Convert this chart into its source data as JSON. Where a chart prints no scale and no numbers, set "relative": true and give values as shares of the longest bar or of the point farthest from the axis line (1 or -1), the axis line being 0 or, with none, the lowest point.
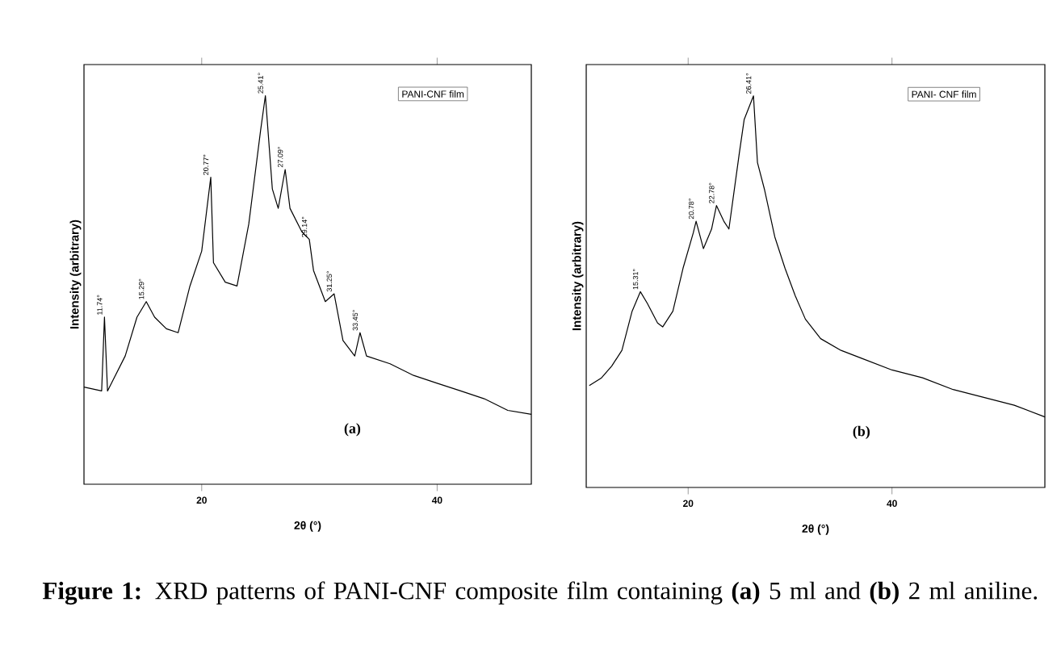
{
  "chart_data": [
    {
      "type": "line",
      "relative": true,
      "xlabel": "2θ (°)",
      "ylabel": "Intensity (arbitrary)",
      "xlim": [
        10,
        48
      ],
      "xticks": [
        20,
        40
      ],
      "tick_labels": "x",
      "grid": false,
      "series": [
        {
          "color": "#000000",
          "x": [
            10,
            11.5,
            11.74,
            12,
            12.5,
            13.5,
            14.5,
            15.29,
            16,
            17,
            18,
            19,
            20,
            20.77,
            21,
            22,
            23,
            24,
            25,
            25.41,
            26,
            26.5,
            27.09,
            27.5,
            28.5,
            29.14,
            29.5,
            30.5,
            31.25,
            32,
            33,
            33.45,
            34,
            36,
            38,
            40,
            42,
            44,
            46,
            48
          ],
          "values": [
            0.25,
            0.24,
            0.43,
            0.24,
            0.27,
            0.33,
            0.43,
            0.47,
            0.43,
            0.4,
            0.39,
            0.51,
            0.6,
            0.79,
            0.57,
            0.52,
            0.51,
            0.67,
            0.91,
            1.0,
            0.76,
            0.71,
            0.81,
            0.71,
            0.65,
            0.63,
            0.55,
            0.47,
            0.49,
            0.37,
            0.33,
            0.39,
            0.33,
            0.31,
            0.28,
            0.26,
            0.24,
            0.22,
            0.19,
            0.18
          ]
        }
      ],
      "annotations": [
        "PANI-CNF film",
        "(a)",
        "**Figure 1:** XRD patterns of PANI-CNF composite film containing **(a)** 5 ml and **(b)** 2 ml aniline.",
        {
          "text": "11.74°",
          "x": 11.74,
          "y": 0.43
        },
        {
          "text": "15.29°",
          "x": 15.29,
          "y": 0.47
        },
        {
          "text": "20.77°",
          "x": 20.77,
          "y": 0.79
        },
        {
          "text": "25.41°",
          "x": 25.41,
          "y": 1.0
        },
        {
          "text": "27.09°",
          "x": 27.09,
          "y": 0.81
        },
        {
          "text": "29.14°",
          "x": 29.14,
          "y": 0.63
        },
        {
          "text": "31.25°",
          "x": 31.25,
          "y": 0.49
        },
        {
          "text": "33.45°",
          "x": 33.45,
          "y": 0.39
        }
      ]
    },
    {
      "type": "line",
      "relative": true,
      "xlabel": "2θ (°)",
      "ylabel": "Intensity (arbitrary)",
      "xlim": [
        10,
        55
      ],
      "xticks": [
        20,
        40
      ],
      "tick_labels": "x",
      "grid": false,
      "series": [
        {
          "color": "#000000",
          "x": [
            10.3,
            11.5,
            12.5,
            13.5,
            14.5,
            15.31,
            16,
            17,
            17.5,
            18.5,
            19.5,
            20.5,
            20.78,
            21.5,
            22.3,
            22.78,
            23.5,
            24,
            25,
            25.5,
            26.41,
            26.8,
            27.5,
            28.5,
            29.5,
            30.5,
            31.5,
            33,
            35,
            37,
            40,
            43,
            46,
            49,
            52,
            55
          ],
          "values": [
            0.26,
            0.28,
            0.31,
            0.35,
            0.45,
            0.5,
            0.47,
            0.42,
            0.41,
            0.45,
            0.56,
            0.65,
            0.68,
            0.61,
            0.66,
            0.72,
            0.68,
            0.66,
            0.85,
            0.94,
            1.0,
            0.83,
            0.76,
            0.64,
            0.56,
            0.49,
            0.43,
            0.38,
            0.35,
            0.33,
            0.3,
            0.28,
            0.25,
            0.23,
            0.21,
            0.18
          ]
        }
      ],
      "annotations": [
        "PANI- CNF film",
        "(b)",
        {
          "text": "15.31°",
          "x": 15.31,
          "y": 0.5
        },
        {
          "text": "20.78°",
          "x": 20.78,
          "y": 0.68
        },
        {
          "text": "22.78°",
          "x": 22.78,
          "y": 0.72
        },
        {
          "text": "26.41°",
          "x": 26.41,
          "y": 1.0
        }
      ]
    }
  ]
}
